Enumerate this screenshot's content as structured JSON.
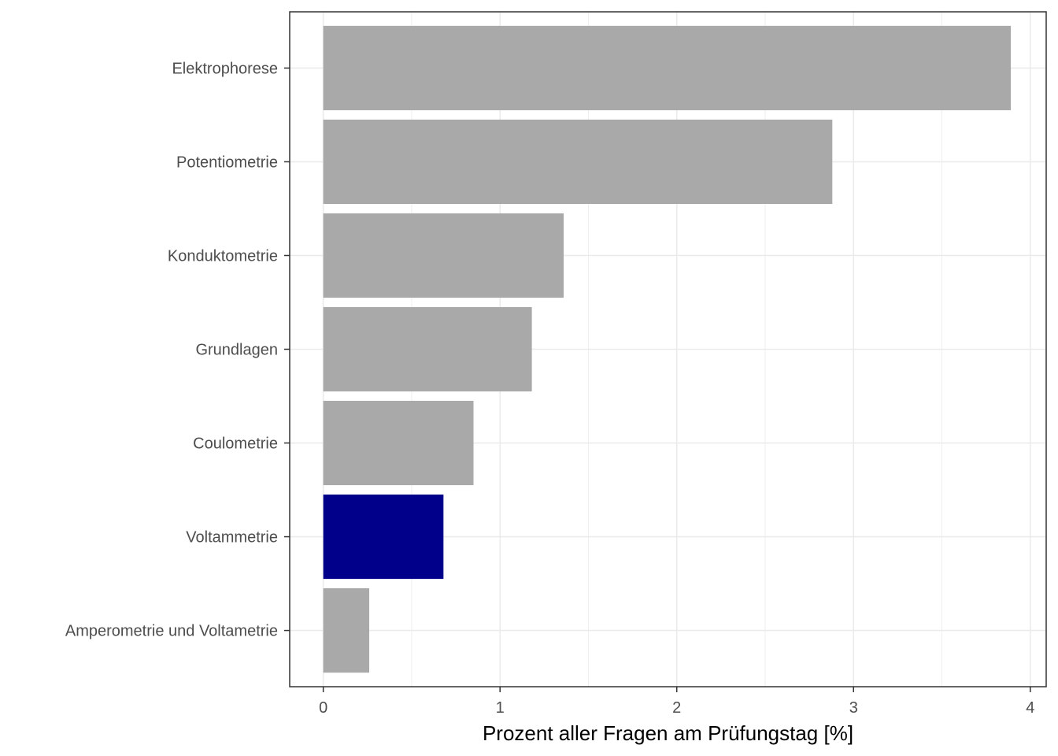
{
  "chart_data": {
    "type": "bar",
    "orientation": "horizontal",
    "title": "",
    "xlabel": "Prozent aller Fragen am Prüfungstag [%]",
    "ylabel": "",
    "categories": [
      "Elektrophorese",
      "Potentiometrie",
      "Konduktometrie",
      "Grundlagen",
      "Coulometrie",
      "Voltammetrie",
      "Amperometrie und Voltametrie"
    ],
    "values": [
      3.89,
      2.88,
      1.36,
      1.18,
      0.85,
      0.68,
      0.26
    ],
    "highlight_category": "Voltammetrie",
    "xlim": [
      -0.19,
      4.09
    ],
    "xticks": [
      0,
      1,
      2,
      3,
      4
    ],
    "xtick_labels": [
      "0",
      "1",
      "2",
      "3",
      "4"
    ],
    "grid": true,
    "legend": "none",
    "colors": {
      "bar": "#a9a9a9",
      "highlight": "#00008b",
      "grid": "#ebebeb",
      "panel_border": "#333333"
    }
  }
}
